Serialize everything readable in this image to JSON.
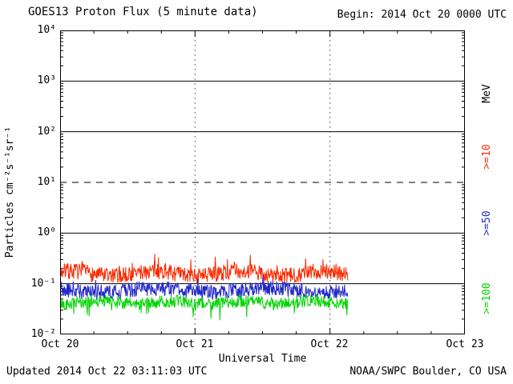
{
  "header": {
    "title": "GOES13 Proton Flux (5 minute data)",
    "begin_label": "Begin: 2014 Oct 20 0000 UTC"
  },
  "footer": {
    "updated": "Updated 2014 Oct 22 03:11:03 UTC",
    "source": "NOAA/SWPC Boulder, CO USA"
  },
  "chart_data": {
    "type": "line",
    "title": "GOES13 Proton Flux (5 minute data)",
    "xlabel": "Universal Time",
    "ylabel": "Particles cm⁻²s⁻¹sr⁻¹",
    "right_axis_title": "MeV",
    "x_tick_labels": [
      "Oct 20",
      "Oct 21",
      "Oct 22",
      "Oct 23"
    ],
    "x_start": "2014 Oct 20 0000 UTC",
    "x_range_days": 3,
    "data_end_day": 2.133,
    "sample_minutes": 5,
    "y_log_range": [
      -2,
      4
    ],
    "y_tick_labels": [
      "10⁴",
      "10³",
      "10²",
      "10¹",
      "10⁰",
      "10⁻¹",
      "10⁻²"
    ],
    "grid_exponents": [
      3,
      2,
      1,
      0,
      -1
    ],
    "threshold_exponent": 1,
    "grid": true,
    "legend_position": "right",
    "series": [
      {
        "name": ">=10",
        "unit": "MeV",
        "color": "#f92a00",
        "approx_mean_flux": 0.16,
        "approx_flux_range": [
          0.09,
          0.45
        ],
        "mean_log10": -0.8,
        "noise_log10": 0.16,
        "spike_prob": 0.07,
        "spike_log10": 0.28,
        "wave_amp": 0.05,
        "wave_freq": 1.6,
        "wave_phase": 0.8,
        "seed": 7
      },
      {
        "name": ">=50",
        "unit": "MeV",
        "color": "#2228c8",
        "approx_mean_flux": 0.074,
        "approx_flux_range": [
          0.04,
          0.14
        ],
        "mean_log10": -1.13,
        "noise_log10": 0.15,
        "spike_prob": 0.05,
        "spike_log10": 0.18,
        "wave_amp": 0.04,
        "wave_freq": 1.2,
        "wave_phase": 2.5,
        "seed": 19
      },
      {
        "name": ">=100",
        "unit": "MeV",
        "color": "#00d400",
        "approx_mean_flux": 0.043,
        "approx_flux_range": [
          0.02,
          0.07
        ],
        "mean_log10": -1.37,
        "noise_log10": 0.12,
        "spike_prob": 0.06,
        "spike_log10": -0.3,
        "wave_amp": 0.03,
        "wave_freq": 1.9,
        "wave_phase": 4.2,
        "seed": 42
      }
    ]
  }
}
